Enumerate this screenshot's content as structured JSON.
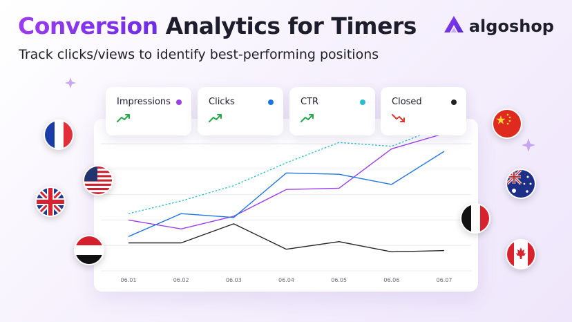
{
  "header": {
    "title_accent": "Conversion",
    "title_rest": " Analytics for Timers",
    "subtitle": "Track clicks/views to identify best-performing positions"
  },
  "brand": {
    "name": "algoshop",
    "icon": "algoshop-logo-icon",
    "color": "#7b2ff0"
  },
  "metrics": [
    {
      "label": "Impressions",
      "dot_color": "#9b3fe6",
      "trend": "up"
    },
    {
      "label": "Clicks",
      "dot_color": "#1e74e0",
      "trend": "up"
    },
    {
      "label": "CTR",
      "dot_color": "#2bbdc9",
      "trend": "up"
    },
    {
      "label": "Closed",
      "dot_color": "#222222",
      "trend": "down"
    }
  ],
  "flags": [
    "france",
    "usa",
    "uk",
    "yemen",
    "china",
    "australia",
    "italy",
    "canada"
  ],
  "chart_data": {
    "type": "line",
    "categories": [
      "06.01",
      "06.02",
      "06.03",
      "06.04",
      "06.05",
      "06.06",
      "06.07"
    ],
    "ylim": [
      0,
      100
    ],
    "grid": true,
    "series": [
      {
        "name": "Impressions",
        "color": "#9b3fe6",
        "dashed": false,
        "values": [
          40,
          33,
          43,
          64,
          65,
          96,
          108
        ]
      },
      {
        "name": "Clicks",
        "color": "#1e74e0",
        "dashed": false,
        "values": [
          27,
          45,
          42,
          77,
          76,
          68,
          94
        ]
      },
      {
        "name": "CTR",
        "color": "#2bbdc9",
        "dashed": true,
        "values": [
          45,
          55,
          67,
          85,
          101,
          98,
          114
        ]
      },
      {
        "name": "Closed",
        "color": "#222222",
        "dashed": false,
        "values": [
          22,
          22,
          37,
          17,
          23,
          15,
          16
        ]
      }
    ]
  }
}
